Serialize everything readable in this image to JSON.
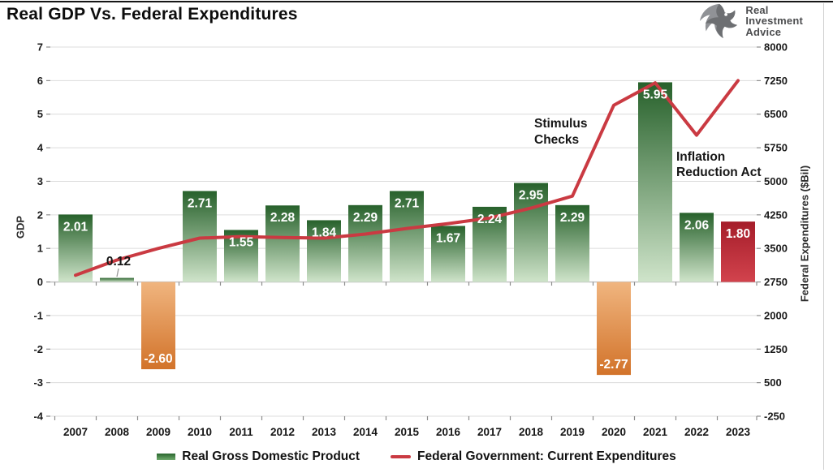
{
  "page": {
    "title": "Real GDP Vs. Federal Expenditures"
  },
  "logo": {
    "name": "Real Investment Advice",
    "lines": [
      "Real",
      "Investment",
      "Advice"
    ]
  },
  "chart_data": {
    "type": "bar",
    "subtype": "combo-bar-line-dual-axis",
    "title": "Real GDP Vs. Federal Expenditures",
    "categories": [
      "2007",
      "2008",
      "2009",
      "2010",
      "2011",
      "2012",
      "2013",
      "2014",
      "2015",
      "2016",
      "2017",
      "2018",
      "2019",
      "2020",
      "2021",
      "2022",
      "2023"
    ],
    "series": [
      {
        "name": "Real Gross Domestic Product",
        "type": "bar",
        "axis": "left",
        "values": [
          2.01,
          0.12,
          -2.6,
          2.71,
          1.55,
          2.28,
          1.84,
          2.29,
          2.71,
          1.67,
          2.24,
          2.95,
          2.29,
          -2.77,
          5.95,
          2.06,
          1.8
        ],
        "labels": [
          "2.01",
          "0.12",
          "-2.60",
          "2.71",
          "1.55",
          "2.28",
          "1.84",
          "2.29",
          "2.71",
          "1.67",
          "2.24",
          "2.95",
          "2.29",
          "-2.77",
          "5.95",
          "2.06",
          "1.80"
        ]
      },
      {
        "name": "Federal Government: Current Expenditures",
        "type": "line",
        "axis": "right",
        "values_est_bil": [
          2900,
          3240,
          3500,
          3730,
          3765,
          3745,
          3730,
          3820,
          3945,
          4055,
          4180,
          4400,
          4670,
          6700,
          7200,
          6030,
          7250
        ]
      }
    ],
    "left_axis": {
      "title": "GDP",
      "min": -4,
      "max": 7,
      "ticks": [
        7,
        6,
        5,
        4,
        3,
        2,
        1,
        0,
        -1,
        -2,
        -3,
        -4
      ]
    },
    "right_axis": {
      "title": "Federal Expenditures ($Bil)",
      "min": -250,
      "max": 8000,
      "ticks": [
        8000,
        7250,
        6500,
        5750,
        5000,
        4250,
        3500,
        2750,
        2000,
        1250,
        500,
        -250
      ]
    },
    "annotations": [
      {
        "id": "stimulus-checks",
        "line1": "Stimulus",
        "line2": "Checks"
      },
      {
        "id": "inflation-reduction-act",
        "line1": "Inflation",
        "line2": "Reduction Act"
      }
    ],
    "grid": true,
    "legend_position": "bottom",
    "colors": {
      "bar_positive_top": "#27612b",
      "bar_positive_bottom": "#cfe4ca",
      "bar_negative_top": "#f0b57f",
      "bar_negative_bottom": "#d2732a",
      "bar_2023_top": "#a51d2a",
      "bar_2023_bottom": "#d2434d",
      "line": "#ca3a42",
      "grid": "#dcdcdc",
      "zero_line": "#bfbfbf",
      "bar_label": "#ffffff",
      "callout_label": "#161616"
    }
  }
}
